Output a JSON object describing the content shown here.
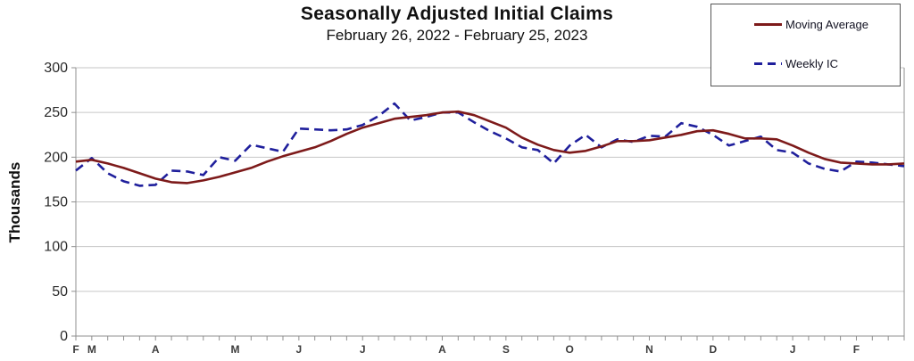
{
  "title": "Seasonally Adjusted Initial Claims",
  "subtitle": "February 26, 2022 - February 25, 2023",
  "y_axis_label": "Thousands",
  "legend": {
    "moving_average": "Moving Average",
    "weekly_ic": "Weekly IC"
  },
  "colors": {
    "moving_average": "#7d1a1a",
    "weekly_ic": "#1f1f9c",
    "grid": "#c6c6c6",
    "axis": "#8f8f8f",
    "tick_text": "#2b2b2b"
  },
  "chart_data": {
    "type": "line",
    "title": "Seasonally Adjusted Initial Claims",
    "subtitle": "February 26, 2022 - February 25, 2023",
    "xlabel": "",
    "ylabel": "Thousands",
    "ylim": [
      0,
      300
    ],
    "y_ticks": [
      0,
      50,
      100,
      150,
      200,
      250,
      300
    ],
    "grid": "horizontal",
    "legend_position": "top-right",
    "x_unit": "week",
    "x_range": "weekly points from week ending 2022-02-26 to 2023-02-25",
    "month_tick_labels": [
      {
        "index": 0,
        "label": "F"
      },
      {
        "index": 1,
        "label": "M"
      },
      {
        "index": 5,
        "label": "A"
      },
      {
        "index": 10,
        "label": "M"
      },
      {
        "index": 14,
        "label": "J"
      },
      {
        "index": 18,
        "label": "J"
      },
      {
        "index": 23,
        "label": "A"
      },
      {
        "index": 27,
        "label": "S"
      },
      {
        "index": 31,
        "label": "O"
      },
      {
        "index": 36,
        "label": "N"
      },
      {
        "index": 40,
        "label": "D"
      },
      {
        "index": 45,
        "label": "J"
      },
      {
        "index": 49,
        "label": "F"
      }
    ],
    "series": [
      {
        "name": "Weekly IC",
        "style": "dashed",
        "color": "#1f1f9c",
        "values": [
          185,
          199,
          182,
          173,
          168,
          169,
          185,
          184,
          180,
          200,
          196,
          214,
          210,
          206,
          232,
          231,
          230,
          231,
          236,
          246,
          260,
          241,
          245,
          250,
          250,
          239,
          229,
          221,
          211,
          208,
          193,
          213,
          225,
          211,
          220,
          217,
          224,
          223,
          238,
          234,
          225,
          213,
          218,
          223,
          208,
          205,
          193,
          187,
          184,
          195,
          194,
          192,
          190
        ]
      },
      {
        "name": "Moving Average",
        "style": "solid",
        "color": "#7d1a1a",
        "values": [
          195,
          197,
          193,
          188,
          182,
          176,
          172,
          171,
          174,
          178,
          183,
          188,
          195,
          201,
          206,
          211,
          218,
          226,
          233,
          238,
          243,
          245,
          247,
          250,
          251,
          247,
          240,
          233,
          222,
          214,
          208,
          205,
          207,
          212,
          218,
          218,
          219,
          222,
          225,
          229,
          230,
          226,
          221,
          221,
          220,
          213,
          205,
          198,
          194,
          193,
          192,
          192,
          193
        ]
      }
    ]
  }
}
